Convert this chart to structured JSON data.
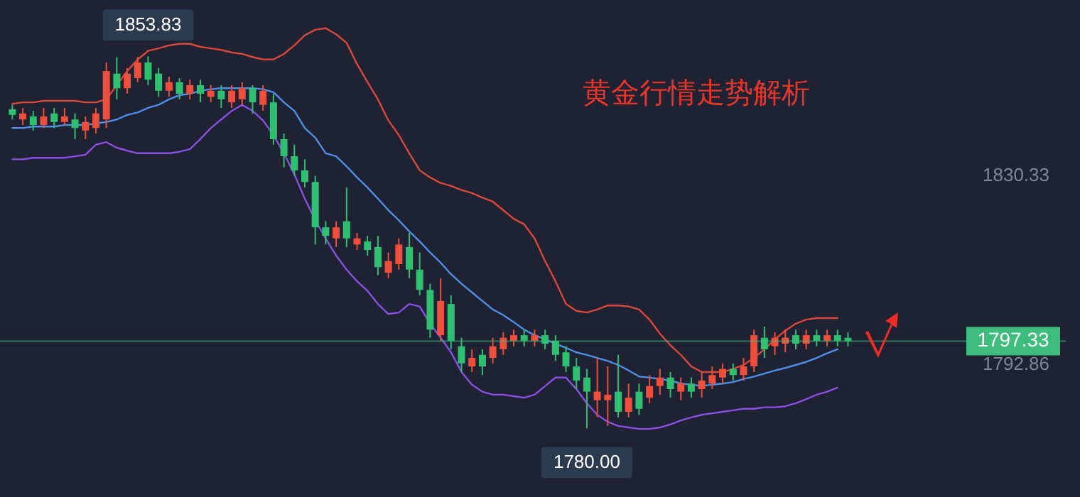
{
  "chart_data": {
    "type": "candlestick",
    "title": "黄金行情走势解析",
    "categories": [
      null,
      null,
      null,
      null,
      null,
      null,
      null,
      null,
      null,
      null,
      null,
      null,
      null,
      null,
      null,
      null,
      null,
      null,
      null,
      null,
      null,
      null,
      null,
      null,
      null,
      null,
      null,
      null,
      null,
      null,
      null,
      null,
      null,
      null,
      null,
      null,
      null,
      null,
      null,
      null,
      null,
      null,
      null,
      null,
      null,
      null,
      null,
      null,
      null,
      null,
      null,
      null,
      null,
      null,
      null,
      null,
      null,
      null,
      null,
      null,
      null,
      null,
      null,
      null,
      null,
      null,
      null,
      null,
      null,
      null,
      null,
      null,
      null,
      null,
      null,
      null,
      null,
      null,
      null,
      null,
      null
    ],
    "ohlc": [
      [
        1843.3,
        1844.2,
        1841.3,
        1842.2
      ],
      [
        1841.3,
        1843.6,
        1840.2,
        1842.5
      ],
      [
        1841.9,
        1843.0,
        1839.1,
        1840.2
      ],
      [
        1840.2,
        1843.6,
        1839.6,
        1841.9
      ],
      [
        1842.5,
        1843.6,
        1839.6,
        1840.8
      ],
      [
        1840.8,
        1843.6,
        1840.2,
        1841.9
      ],
      [
        1841.3,
        1842.5,
        1837.4,
        1839.6
      ],
      [
        1839.1,
        1841.9,
        1837.4,
        1840.8
      ],
      [
        1839.6,
        1843.6,
        1838.5,
        1842.5
      ],
      [
        1841.3,
        1852.6,
        1839.6,
        1850.9
      ],
      [
        1850.4,
        1853.7,
        1845.3,
        1847.5
      ],
      [
        1847.5,
        1851.5,
        1846.4,
        1850.4
      ],
      [
        1849.5,
        1853.7,
        1848.7,
        1852.6
      ],
      [
        1852.6,
        1853.83,
        1848.1,
        1849.2
      ],
      [
        1850.4,
        1851.5,
        1845.8,
        1847.0
      ],
      [
        1847.0,
        1849.8,
        1845.8,
        1848.7
      ],
      [
        1848.7,
        1849.5,
        1845.3,
        1846.4
      ],
      [
        1846.4,
        1849.2,
        1845.3,
        1848.1
      ],
      [
        1848.1,
        1849.2,
        1844.7,
        1846.4
      ],
      [
        1845.8,
        1848.1,
        1844.7,
        1847.0
      ],
      [
        1847.0,
        1848.1,
        1843.6,
        1845.3
      ],
      [
        1844.7,
        1848.1,
        1843.6,
        1847.0
      ],
      [
        1845.3,
        1848.7,
        1844.2,
        1847.5
      ],
      [
        1847.5,
        1848.1,
        1842.5,
        1844.7
      ],
      [
        1844.2,
        1848.1,
        1843.0,
        1847.0
      ],
      [
        1844.7,
        1846.4,
        1836.3,
        1837.4
      ],
      [
        1837.4,
        1838.5,
        1831.8,
        1834.0
      ],
      [
        1834.0,
        1836.3,
        1830.1,
        1831.2
      ],
      [
        1831.2,
        1833.4,
        1827.8,
        1828.9
      ],
      [
        1828.9,
        1830.1,
        1816.5,
        1819.9
      ],
      [
        1819.9,
        1821.1,
        1816.5,
        1818.2
      ],
      [
        1817.7,
        1821.1,
        1816.0,
        1819.9
      ],
      [
        1821.1,
        1827.8,
        1816.0,
        1817.7
      ],
      [
        1816.5,
        1818.8,
        1815.4,
        1817.7
      ],
      [
        1817.1,
        1818.2,
        1814.3,
        1815.4
      ],
      [
        1816.0,
        1818.2,
        1810.4,
        1812.0
      ],
      [
        1810.9,
        1814.9,
        1809.8,
        1813.2
      ],
      [
        1812.6,
        1817.7,
        1811.5,
        1816.5
      ],
      [
        1816.0,
        1818.8,
        1809.8,
        1811.5
      ],
      [
        1811.5,
        1814.9,
        1806.4,
        1807.5
      ],
      [
        1807.5,
        1808.7,
        1798.0,
        1799.6
      ],
      [
        1798.5,
        1809.8,
        1797.4,
        1805.3
      ],
      [
        1804.7,
        1806.4,
        1795.7,
        1797.4
      ],
      [
        1796.3,
        1798.0,
        1791.2,
        1792.9
      ],
      [
        1792.3,
        1795.7,
        1791.2,
        1794.0
      ],
      [
        1794.6,
        1795.7,
        1790.6,
        1792.3
      ],
      [
        1794.0,
        1798.0,
        1792.9,
        1796.3
      ],
      [
        1795.7,
        1799.1,
        1794.6,
        1798.0
      ],
      [
        1797.4,
        1799.6,
        1796.3,
        1798.5
      ],
      [
        1798.5,
        1799.6,
        1796.3,
        1797.4
      ],
      [
        1797.4,
        1799.6,
        1796.3,
        1798.5
      ],
      [
        1798.5,
        1799.6,
        1795.7,
        1796.8
      ],
      [
        1797.4,
        1798.5,
        1793.4,
        1794.6
      ],
      [
        1795.1,
        1796.3,
        1791.2,
        1792.3
      ],
      [
        1792.3,
        1794.0,
        1787.8,
        1789.5
      ],
      [
        1790.1,
        1791.8,
        1780.0,
        1787.3
      ],
      [
        1785.6,
        1794.0,
        1782.2,
        1787.3
      ],
      [
        1785.6,
        1792.3,
        1780.5,
        1786.7
      ],
      [
        1787.3,
        1794.6,
        1782.2,
        1783.3
      ],
      [
        1783.3,
        1788.9,
        1782.2,
        1786.1
      ],
      [
        1787.3,
        1788.9,
        1782.7,
        1783.9
      ],
      [
        1786.1,
        1790.6,
        1785.0,
        1788.4
      ],
      [
        1788.4,
        1791.8,
        1786.7,
        1790.1
      ],
      [
        1790.1,
        1791.2,
        1786.1,
        1787.8
      ],
      [
        1787.3,
        1790.1,
        1785.6,
        1788.9
      ],
      [
        1788.9,
        1790.1,
        1786.1,
        1787.3
      ],
      [
        1787.8,
        1791.2,
        1786.1,
        1789.5
      ],
      [
        1788.9,
        1792.3,
        1787.8,
        1790.6
      ],
      [
        1790.1,
        1792.9,
        1788.9,
        1791.8
      ],
      [
        1791.8,
        1792.9,
        1789.5,
        1790.6
      ],
      [
        1790.6,
        1794.0,
        1789.5,
        1792.3
      ],
      [
        1792.3,
        1799.6,
        1791.2,
        1798.5
      ],
      [
        1798.0,
        1800.2,
        1794.0,
        1795.7
      ],
      [
        1796.3,
        1799.1,
        1794.6,
        1798.0
      ],
      [
        1796.8,
        1799.6,
        1795.1,
        1798.0
      ],
      [
        1798.5,
        1799.6,
        1795.7,
        1796.8
      ],
      [
        1796.8,
        1799.6,
        1795.7,
        1798.5
      ],
      [
        1798.5,
        1799.6,
        1796.3,
        1797.4
      ],
      [
        1797.4,
        1799.6,
        1796.3,
        1798.5
      ],
      [
        1798.5,
        1799.6,
        1796.3,
        1797.4
      ],
      [
        1798.0,
        1799.1,
        1796.3,
        1797.33
      ]
    ],
    "colors": [
      "#2fbf71",
      "#ee4e3c",
      "#2fbf71",
      "#ee4e3c",
      "#2fbf71",
      "#ee4e3c",
      "#2fbf71",
      "#ee4e3c",
      "#ee4e3c",
      "#ee4e3c",
      "#2fbf71",
      "#ee4e3c",
      "#ee4e3c",
      "#2fbf71",
      "#2fbf71",
      "#ee4e3c",
      "#2fbf71",
      "#ee4e3c",
      "#2fbf71",
      "#ee4e3c",
      "#2fbf71",
      "#ee4e3c",
      "#ee4e3c",
      "#2fbf71",
      "#ee4e3c",
      "#2fbf71",
      "#2fbf71",
      "#2fbf71",
      "#2fbf71",
      "#2fbf71",
      "#2fbf71",
      "#ee4e3c",
      "#2fbf71",
      "#ee4e3c",
      "#2fbf71",
      "#2fbf71",
      "#ee4e3c",
      "#ee4e3c",
      "#2fbf71",
      "#2fbf71",
      "#2fbf71",
      "#ee4e3c",
      "#2fbf71",
      "#2fbf71",
      "#ee4e3c",
      "#2fbf71",
      "#ee4e3c",
      "#ee4e3c",
      "#ee4e3c",
      "#2fbf71",
      "#ee4e3c",
      "#2fbf71",
      "#2fbf71",
      "#2fbf71",
      "#2fbf71",
      "#2fbf71",
      "#ee4e3c",
      "#ee4e3c",
      "#2fbf71",
      "#ee4e3c",
      "#2fbf71",
      "#ee4e3c",
      "#ee4e3c",
      "#2fbf71",
      "#ee4e3c",
      "#2fbf71",
      "#ee4e3c",
      "#ee4e3c",
      "#ee4e3c",
      "#2fbf71",
      "#ee4e3c",
      "#ee4e3c",
      "#2fbf71",
      "#ee4e3c",
      "#ee4e3c",
      "#2fbf71",
      "#ee4e3c",
      "#2fbf71",
      "#ee4e3c",
      "#2fbf71",
      "#2fbf71"
    ],
    "series": [
      {
        "type": "line",
        "color": "#d9483a",
        "values": [
          1844.4,
          1844.7,
          1844.7,
          1845.0,
          1845.0,
          1845.0,
          1845.0,
          1844.7,
          1844.7,
          1845.3,
          1848.1,
          1850.9,
          1853.2,
          1854.9,
          1855.4,
          1856.0,
          1856.3,
          1856.3,
          1855.7,
          1855.4,
          1855.1,
          1854.6,
          1854.3,
          1853.7,
          1853.2,
          1853.2,
          1854.3,
          1856.0,
          1858.0,
          1859.1,
          1859.4,
          1858.2,
          1856.5,
          1852.3,
          1848.7,
          1845.3,
          1841.1,
          1838.2,
          1834.6,
          1831.2,
          1829.8,
          1828.7,
          1828.1,
          1827.3,
          1826.7,
          1825.8,
          1825.0,
          1823.3,
          1821.6,
          1820.5,
          1817.7,
          1813.2,
          1809.2,
          1804.7,
          1803.3,
          1803.0,
          1803.6,
          1804.4,
          1804.4,
          1804.2,
          1803.6,
          1801.6,
          1798.8,
          1796.5,
          1794.6,
          1792.3,
          1791.2,
          1791.2,
          1791.2,
          1791.8,
          1792.6,
          1794.0,
          1795.7,
          1797.7,
          1799.4,
          1800.8,
          1801.6,
          1801.9,
          1801.9,
          1801.9,
          null
        ]
      },
      {
        "type": "line",
        "color": "#4f8ee6",
        "values": [
          1839.6,
          1839.6,
          1839.9,
          1839.9,
          1839.9,
          1840.2,
          1840.2,
          1840.2,
          1840.5,
          1840.8,
          1841.3,
          1842.2,
          1842.7,
          1843.6,
          1844.2,
          1845.3,
          1846.1,
          1846.4,
          1847.0,
          1847.3,
          1847.5,
          1847.5,
          1847.5,
          1847.5,
          1847.3,
          1846.7,
          1844.7,
          1843.0,
          1839.6,
          1837.7,
          1834.6,
          1834.0,
          1832.0,
          1829.8,
          1827.8,
          1825.6,
          1823.3,
          1821.3,
          1819.1,
          1817.1,
          1814.9,
          1812.9,
          1810.6,
          1808.7,
          1807.0,
          1805.3,
          1803.6,
          1802.5,
          1801.1,
          1799.6,
          1798.5,
          1797.7,
          1796.8,
          1796.0,
          1795.1,
          1794.6,
          1794.0,
          1793.4,
          1792.6,
          1791.5,
          1790.3,
          1790.1,
          1789.8,
          1789.5,
          1788.9,
          1788.7,
          1788.4,
          1788.7,
          1788.9,
          1789.2,
          1789.8,
          1790.3,
          1790.9,
          1791.5,
          1792.0,
          1792.6,
          1793.2,
          1794.0,
          1794.9,
          1795.7,
          null
        ]
      },
      {
        "type": "line",
        "color": "#8a4fe3",
        "values": [
          1833.4,
          1833.4,
          1833.7,
          1833.7,
          1833.7,
          1833.7,
          1834.0,
          1834.3,
          1836.3,
          1836.8,
          1835.7,
          1835.1,
          1834.6,
          1834.6,
          1834.6,
          1834.6,
          1834.9,
          1835.4,
          1837.4,
          1839.6,
          1841.3,
          1843.0,
          1844.2,
          1843.0,
          1841.1,
          1838.2,
          1834.6,
          1830.4,
          1825.6,
          1821.3,
          1817.7,
          1814.3,
          1811.5,
          1809.2,
          1807.3,
          1804.7,
          1802.7,
          1803.0,
          1804.7,
          1804.2,
          1800.8,
          1798.0,
          1795.1,
          1791.2,
          1788.7,
          1787.3,
          1786.7,
          1786.7,
          1786.4,
          1786.1,
          1786.7,
          1788.4,
          1790.1,
          1790.1,
          1787.8,
          1785.0,
          1782.7,
          1781.3,
          1780.5,
          1780.2,
          1779.9,
          1779.9,
          1780.2,
          1780.8,
          1781.6,
          1782.2,
          1782.7,
          1783.0,
          1783.3,
          1783.6,
          1783.9,
          1783.9,
          1784.2,
          1784.2,
          1784.4,
          1785.0,
          1785.8,
          1786.7,
          1787.3,
          1788.1,
          null
        ]
      }
    ],
    "ylim": [
      1766.4,
      1865.0
    ],
    "yticks": [
      1830.33,
      1792.86
    ],
    "ref_lines": [
      {
        "axis": "y",
        "value": 1797.33,
        "label": "1797.33",
        "color": "#3dbd7d"
      }
    ],
    "annotations": [
      {
        "text": "1853.83",
        "y": 1853.83
      },
      {
        "text": "1780.00",
        "y": 1780.0
      }
    ]
  }
}
